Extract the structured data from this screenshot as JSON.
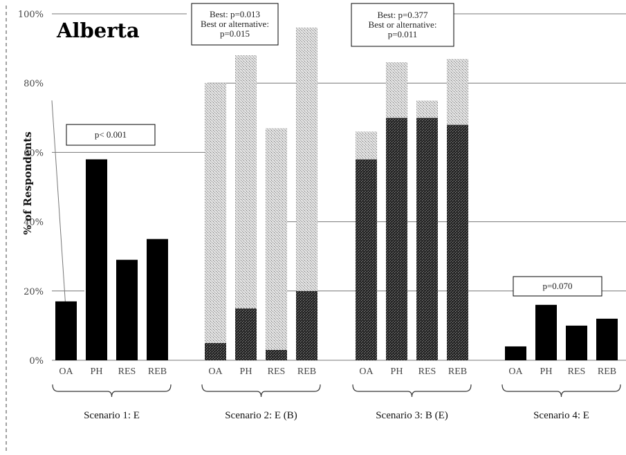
{
  "chart_data": {
    "type": "bar",
    "title": "Alberta",
    "ylabel": "% of Respondents",
    "ylim": [
      0,
      100
    ],
    "yticks": [
      "0%",
      "20%",
      "40%",
      "60%",
      "80%",
      "100%"
    ],
    "grid": true,
    "groups": [
      {
        "label": "Scenario 1: E",
        "categories": [
          "OA",
          "PH",
          "RES",
          "REB"
        ],
        "annotation": [
          "p< 0.001"
        ],
        "series": [
          {
            "values": [
              17,
              58,
              29,
              35
            ],
            "color": "#000000"
          }
        ]
      },
      {
        "label": "Scenario 2: E (B)",
        "categories": [
          "OA",
          "PH",
          "RES",
          "REB"
        ],
        "annotation": [
          "Best: p=0.013",
          "Best or alternative:",
          "p=0.015"
        ],
        "series": [
          {
            "values": [
              5,
              15,
              3,
              20
            ],
            "color": "#333333"
          },
          {
            "values": [
              75,
              73,
              64,
              76
            ],
            "color": "#cfcfcf"
          }
        ]
      },
      {
        "label": "Scenario 3: B (E)",
        "categories": [
          "OA",
          "PH",
          "RES",
          "REB"
        ],
        "annotation": [
          "Best: p=0.377",
          "Best or alternative:",
          "p=0.011"
        ],
        "series": [
          {
            "values": [
              58,
              70,
              70,
              68
            ],
            "color": "#333333"
          },
          {
            "values": [
              8,
              16,
              5,
              19
            ],
            "color": "#cfcfcf"
          }
        ]
      },
      {
        "label": "Scenario 4: E",
        "categories": [
          "OA",
          "PH",
          "RES",
          "REB"
        ],
        "annotation": [
          "p=0.070"
        ],
        "series": [
          {
            "values": [
              4,
              16,
              10,
              12
            ],
            "color": "#000000"
          }
        ]
      }
    ]
  }
}
